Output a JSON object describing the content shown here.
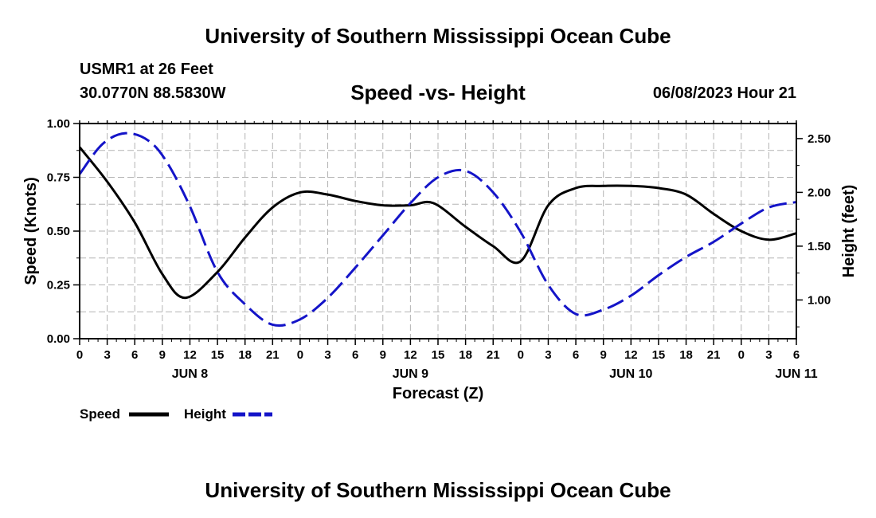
{
  "header": {
    "title": "University of Southern Mississippi Ocean Cube",
    "station": "USMR1 at 26 Feet",
    "coords": "30.0770N  88.5830W",
    "subtitle": "Speed -vs- Height",
    "datetime": "06/08/2023 Hour 21"
  },
  "footer": {
    "title": "University of Southern Mississippi Ocean Cube"
  },
  "legend": {
    "speed_label": "Speed",
    "height_label": "Height"
  },
  "colors": {
    "speed": "#000000",
    "height": "#1414c8",
    "grid": "#b4b4b4"
  },
  "chart_data": {
    "type": "line",
    "title": "Speed -vs- Height",
    "xlabel": "Forecast (Z)",
    "ylabel": "Speed (Knots)",
    "y2label": "Height (feet)",
    "x_hours_range": [
      0,
      78
    ],
    "ylim": [
      0,
      1.0
    ],
    "y2lim": [
      0.64,
      2.64
    ],
    "y_ticks": [
      "0.00",
      "0.25",
      "0.50",
      "0.75",
      "1.00"
    ],
    "y2_ticks": [
      "1.00",
      "1.50",
      "2.00",
      "2.50"
    ],
    "x_tick_labels": [
      "0",
      "3",
      "6",
      "9",
      "12",
      "15",
      "18",
      "21",
      "0",
      "3",
      "6",
      "9",
      "12",
      "15",
      "18",
      "21",
      "0",
      "3",
      "6",
      "9",
      "12",
      "15",
      "18",
      "21",
      "0",
      "3",
      "6"
    ],
    "day_labels": [
      {
        "label": "JUN 8",
        "hour": 12
      },
      {
        "label": "JUN 9",
        "hour": 36
      },
      {
        "label": "JUN 10",
        "hour": 60
      },
      {
        "label": "JUN 11",
        "hour": 78
      }
    ],
    "series": [
      {
        "name": "Speed",
        "axis": "left",
        "style": "solid",
        "x": [
          0,
          3,
          6,
          9,
          11.5,
          15,
          18,
          21,
          24,
          27,
          30,
          33,
          36,
          38.5,
          42,
          45,
          48,
          51,
          54,
          57,
          60,
          63,
          66,
          69,
          72,
          75,
          78
        ],
        "values": [
          0.89,
          0.73,
          0.54,
          0.3,
          0.19,
          0.31,
          0.47,
          0.61,
          0.68,
          0.67,
          0.64,
          0.62,
          0.62,
          0.63,
          0.52,
          0.43,
          0.36,
          0.62,
          0.7,
          0.71,
          0.71,
          0.7,
          0.67,
          0.58,
          0.5,
          0.46,
          0.49
        ]
      },
      {
        "name": "Height",
        "axis": "right",
        "style": "dashed",
        "x": [
          0,
          2.5,
          5,
          7.5,
          9.5,
          12,
          15,
          18,
          21,
          24,
          27,
          30,
          33,
          36,
          39,
          42,
          45,
          48,
          51,
          54,
          57,
          60,
          63,
          66,
          69,
          72,
          75,
          78
        ],
        "values": [
          2.17,
          2.45,
          2.55,
          2.48,
          2.28,
          1.87,
          1.26,
          0.96,
          0.77,
          0.82,
          1.02,
          1.3,
          1.6,
          1.9,
          2.14,
          2.2,
          2.0,
          1.63,
          1.14,
          0.87,
          0.91,
          1.04,
          1.23,
          1.4,
          1.54,
          1.71,
          1.86,
          1.91
        ]
      }
    ]
  }
}
